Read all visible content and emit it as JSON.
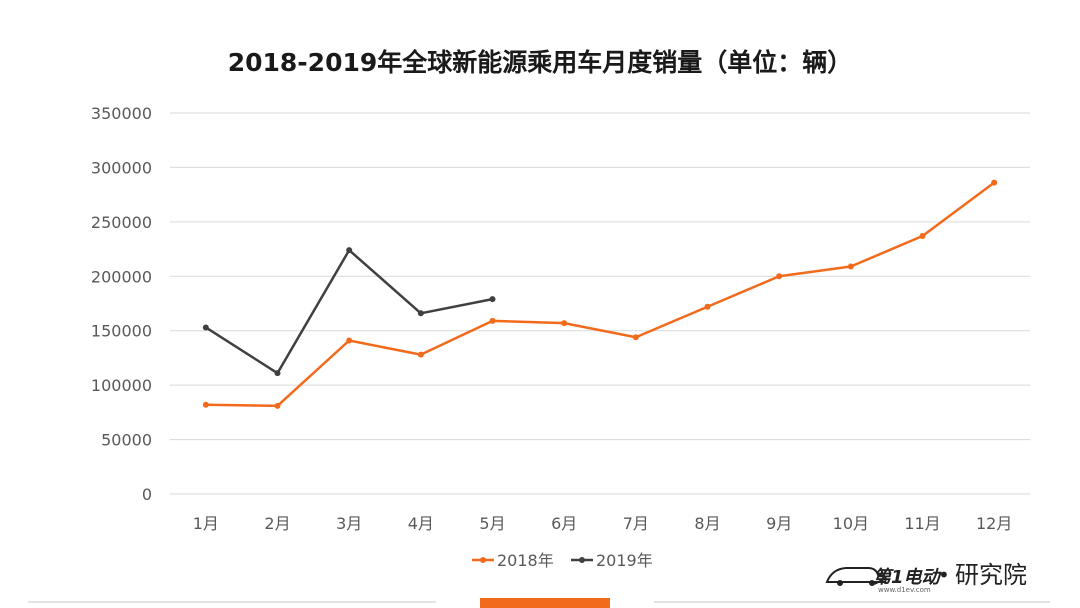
{
  "chart_data": {
    "type": "line",
    "title": "2018-2019年全球新能源乘用车月度销量（单位：辆）",
    "categories": [
      "1月",
      "2月",
      "3月",
      "4月",
      "5月",
      "6月",
      "7月",
      "8月",
      "9月",
      "10月",
      "11月",
      "12月"
    ],
    "ylim": [
      0,
      350000
    ],
    "yticks": [
      "0",
      "50000",
      "100000",
      "150000",
      "200000",
      "250000",
      "300000",
      "350000"
    ],
    "grid": true,
    "legend_position": "bottom",
    "series": [
      {
        "name": "2018年",
        "color": "#f26b1d",
        "values": [
          82000,
          81000,
          141000,
          128000,
          159000,
          157000,
          144000,
          172000,
          200000,
          209000,
          237000,
          286000
        ]
      },
      {
        "name": "2019年",
        "color": "#404040",
        "values": [
          153000,
          111000,
          224000,
          166000,
          179000,
          null,
          null,
          null,
          null,
          null,
          null,
          null
        ]
      }
    ]
  },
  "brand": {
    "logo_text": "第1电动",
    "logo_sub": "www.d1ev.com",
    "dot": "•",
    "institute": "研究院",
    "accent": "#f26b1d"
  }
}
